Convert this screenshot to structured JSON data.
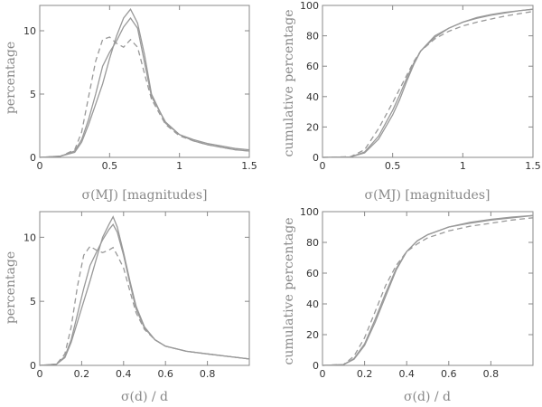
{
  "chart_data": [
    {
      "type": "line",
      "xlabel": "σ(MJ) [magnitudes]",
      "ylabel": "percentage",
      "xlim": [
        0,
        1.5
      ],
      "ylim": [
        0,
        12
      ],
      "xticks": [
        0,
        0.5,
        1,
        1.5
      ],
      "xtick_labels": [
        "0",
        "0.5",
        "1",
        "1.5"
      ],
      "yticks": [
        0,
        5,
        10
      ],
      "ytick_labels": [
        "0",
        "5",
        "10"
      ],
      "series": [
        {
          "style": "solid",
          "x": [
            0,
            0.15,
            0.25,
            0.3,
            0.35,
            0.4,
            0.45,
            0.5,
            0.55,
            0.6,
            0.65,
            0.7,
            0.75,
            0.8,
            0.9,
            1.0,
            1.1,
            1.2,
            1.3,
            1.4,
            1.5
          ],
          "y": [
            0,
            0.1,
            0.4,
            1.2,
            2.6,
            4.2,
            5.8,
            7.8,
            9.6,
            11.0,
            11.7,
            10.6,
            8.1,
            5.0,
            2.7,
            1.8,
            1.4,
            1.1,
            0.9,
            0.7,
            0.6
          ]
        },
        {
          "style": "solid",
          "x": [
            0,
            0.15,
            0.25,
            0.3,
            0.35,
            0.4,
            0.45,
            0.5,
            0.55,
            0.6,
            0.65,
            0.7,
            0.75,
            0.8,
            0.9,
            1.0,
            1.1,
            1.2,
            1.3,
            1.4,
            1.5
          ],
          "y": [
            0,
            0.1,
            0.5,
            1.4,
            3.0,
            5.0,
            7.2,
            8.3,
            9.2,
            10.3,
            11.0,
            10.2,
            7.5,
            4.8,
            2.8,
            1.8,
            1.3,
            1.0,
            0.8,
            0.6,
            0.5
          ]
        },
        {
          "style": "dashed",
          "x": [
            0,
            0.15,
            0.25,
            0.3,
            0.35,
            0.4,
            0.45,
            0.5,
            0.55,
            0.6,
            0.65,
            0.7,
            0.75,
            0.8,
            0.9,
            1.0,
            1.1,
            1.2,
            1.3,
            1.4,
            1.5
          ],
          "y": [
            0,
            0.1,
            0.6,
            2.0,
            4.8,
            7.6,
            9.3,
            9.5,
            9.0,
            8.7,
            9.3,
            8.7,
            6.6,
            4.6,
            2.6,
            1.7,
            1.3,
            1.0,
            0.8,
            0.6,
            0.5
          ]
        }
      ]
    },
    {
      "type": "line",
      "xlabel": "σ(MJ) [magnitudes]",
      "ylabel": "cumulative percentage",
      "xlim": [
        0,
        1.5
      ],
      "ylim": [
        0,
        100
      ],
      "xticks": [
        0,
        0.5,
        1,
        1.5
      ],
      "xtick_labels": [
        "0",
        "0.5",
        "1",
        "1.5"
      ],
      "yticks": [
        0,
        20,
        40,
        60,
        80,
        100
      ],
      "ytick_labels": [
        "0",
        "20",
        "40",
        "60",
        "80",
        "100"
      ],
      "series": [
        {
          "style": "solid",
          "x": [
            0,
            0.2,
            0.3,
            0.4,
            0.5,
            0.55,
            0.6,
            0.65,
            0.7,
            0.8,
            0.9,
            1.0,
            1.1,
            1.2,
            1.3,
            1.4,
            1.5
          ],
          "y": [
            0,
            0.3,
            3,
            12,
            28,
            38,
            50,
            61,
            70,
            80,
            85,
            89,
            91.5,
            93.5,
            95,
            96.5,
            97.5
          ]
        },
        {
          "style": "solid",
          "x": [
            0,
            0.2,
            0.3,
            0.4,
            0.5,
            0.55,
            0.6,
            0.65,
            0.7,
            0.8,
            0.9,
            1.0,
            1.1,
            1.2,
            1.3,
            1.4,
            1.5
          ],
          "y": [
            0,
            0.3,
            3.5,
            14,
            31,
            41,
            52,
            62,
            70,
            79,
            85,
            89,
            92,
            94,
            95.5,
            96.5,
            97.5
          ]
        },
        {
          "style": "dashed",
          "x": [
            0,
            0.2,
            0.3,
            0.4,
            0.5,
            0.55,
            0.6,
            0.65,
            0.7,
            0.8,
            0.9,
            1.0,
            1.1,
            1.2,
            1.3,
            1.4,
            1.5
          ],
          "y": [
            0,
            0.5,
            5,
            19,
            36,
            45,
            54,
            63,
            70,
            78,
            83,
            86.5,
            89,
            91,
            93,
            94.5,
            96
          ]
        }
      ]
    },
    {
      "type": "line",
      "xlabel": "σ(d) / d",
      "ylabel": "percentage",
      "xlim": [
        0,
        1
      ],
      "ylim": [
        0,
        12
      ],
      "xticks": [
        0,
        0.2,
        0.4,
        0.6,
        0.8
      ],
      "xtick_labels": [
        "0",
        "0.2",
        "0.4",
        "0.6",
        "0.8"
      ],
      "yticks": [
        0,
        5,
        10
      ],
      "ytick_labels": [
        "0",
        "5",
        "10"
      ],
      "series": [
        {
          "style": "solid",
          "x": [
            0,
            0.08,
            0.12,
            0.15,
            0.18,
            0.21,
            0.24,
            0.27,
            0.3,
            0.33,
            0.35,
            0.37,
            0.4,
            0.43,
            0.46,
            0.5,
            0.55,
            0.6,
            0.7,
            0.8,
            0.9,
            1.0
          ],
          "y": [
            0,
            0.1,
            0.6,
            1.8,
            3.4,
            5.0,
            6.6,
            8.3,
            10.0,
            11.0,
            11.6,
            10.8,
            8.8,
            6.6,
            4.6,
            3.0,
            2.0,
            1.5,
            1.1,
            0.9,
            0.7,
            0.5
          ]
        },
        {
          "style": "solid",
          "x": [
            0,
            0.08,
            0.12,
            0.15,
            0.18,
            0.21,
            0.24,
            0.27,
            0.3,
            0.33,
            0.35,
            0.37,
            0.4,
            0.43,
            0.46,
            0.5,
            0.55,
            0.6,
            0.7,
            0.8,
            0.9,
            1.0
          ],
          "y": [
            0,
            0.1,
            0.7,
            2.0,
            4.0,
            6.0,
            7.8,
            8.8,
            9.8,
            10.6,
            11.0,
            10.4,
            8.6,
            6.4,
            4.4,
            2.9,
            2.0,
            1.5,
            1.1,
            0.9,
            0.7,
            0.5
          ]
        },
        {
          "style": "dashed",
          "x": [
            0,
            0.08,
            0.12,
            0.15,
            0.18,
            0.21,
            0.24,
            0.27,
            0.3,
            0.33,
            0.35,
            0.37,
            0.4,
            0.43,
            0.46,
            0.5,
            0.55,
            0.6,
            0.7,
            0.8,
            0.9,
            1.0
          ],
          "y": [
            0,
            0.1,
            0.9,
            3.0,
            6.2,
            8.6,
            9.3,
            9.0,
            8.8,
            9.0,
            9.2,
            8.6,
            7.6,
            5.8,
            4.1,
            2.8,
            2.0,
            1.5,
            1.1,
            0.9,
            0.7,
            0.5
          ]
        }
      ]
    },
    {
      "type": "line",
      "xlabel": "σ(d) / d",
      "ylabel": "cumulative percentage",
      "xlim": [
        0,
        1
      ],
      "ylim": [
        0,
        100
      ],
      "xticks": [
        0,
        0.2,
        0.4,
        0.6,
        0.8
      ],
      "xtick_labels": [
        "0",
        "0.2",
        "0.4",
        "0.6",
        "0.8"
      ],
      "yticks": [
        0,
        20,
        40,
        60,
        80,
        100
      ],
      "ytick_labels": [
        "0",
        "20",
        "40",
        "60",
        "80",
        "100"
      ],
      "series": [
        {
          "style": "solid",
          "x": [
            0,
            0.1,
            0.15,
            0.2,
            0.25,
            0.3,
            0.35,
            0.4,
            0.45,
            0.5,
            0.6,
            0.7,
            0.8,
            0.9,
            1.0
          ],
          "y": [
            0,
            0.5,
            4,
            13,
            28,
            45,
            62,
            74,
            81,
            85,
            90,
            92.5,
            94.5,
            96,
            97.5
          ]
        },
        {
          "style": "solid",
          "x": [
            0,
            0.1,
            0.15,
            0.2,
            0.25,
            0.3,
            0.35,
            0.4,
            0.45,
            0.5,
            0.6,
            0.7,
            0.8,
            0.9,
            1.0
          ],
          "y": [
            0,
            0.5,
            4.5,
            14,
            30,
            47,
            63,
            74,
            81,
            85,
            90,
            93,
            95,
            96.5,
            97.5
          ]
        },
        {
          "style": "dashed",
          "x": [
            0,
            0.1,
            0.15,
            0.2,
            0.25,
            0.3,
            0.35,
            0.4,
            0.45,
            0.5,
            0.6,
            0.7,
            0.8,
            0.9,
            1.0
          ],
          "y": [
            0,
            0.6,
            6,
            18,
            35,
            52,
            65,
            74,
            79,
            83,
            87.5,
            90.5,
            92.5,
            94.5,
            96
          ]
        }
      ]
    }
  ]
}
